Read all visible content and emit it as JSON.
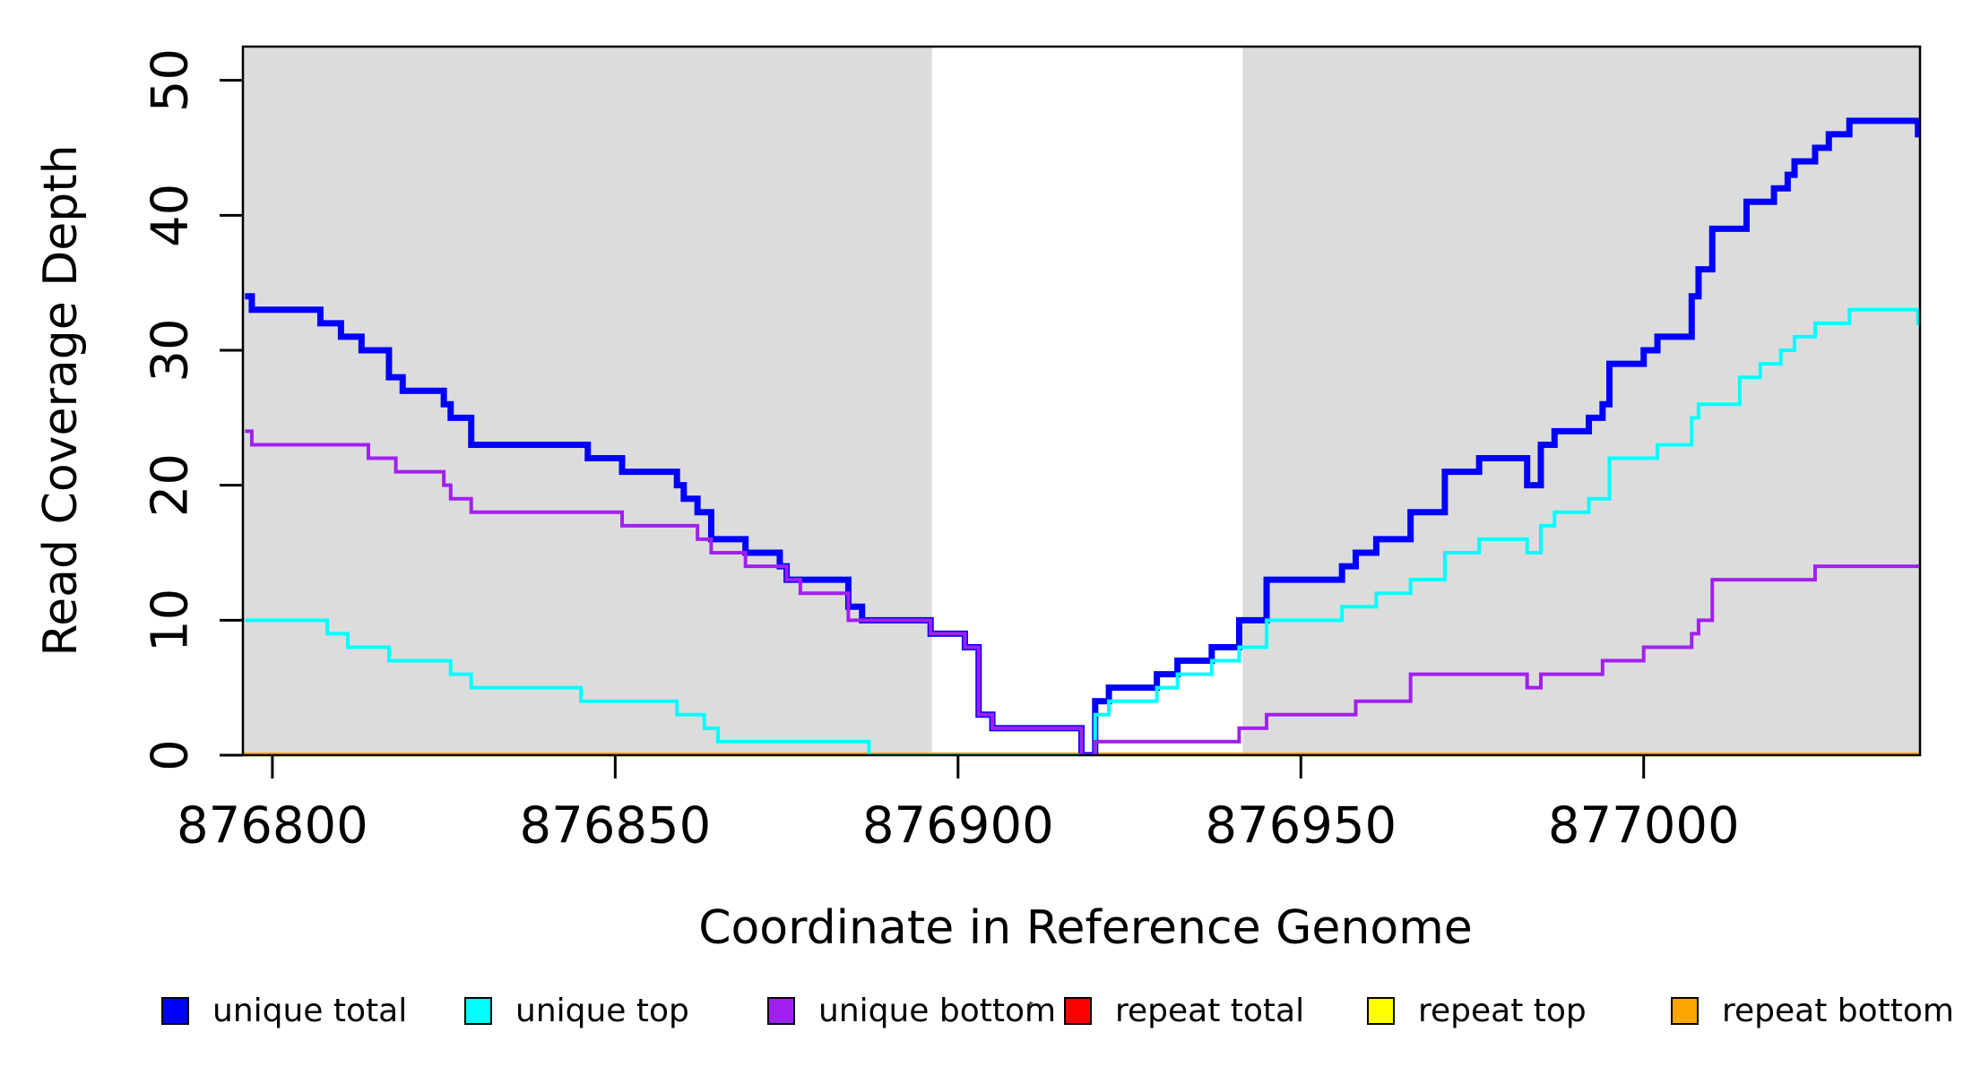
{
  "figure": {
    "y_title": "Read Coverage Depth",
    "x_title": "Coordinate in Reference Genome",
    "legend": {
      "items": [
        {
          "label": "unique total",
          "color": "#0000FF"
        },
        {
          "label": "unique top",
          "color": "#00FFFF"
        },
        {
          "label": "unique bottom",
          "color": "#A020F0"
        },
        {
          "label": "repeat total",
          "color": "#FF0000"
        },
        {
          "label": "repeat top",
          "color": "#FFFF00"
        },
        {
          "label": "repeat bottom",
          "color": "#FFA500"
        }
      ]
    }
  },
  "chart_data": {
    "type": "line",
    "subtype": "step",
    "title": "",
    "xlabel": "Coordinate in Reference Genome",
    "ylabel": "Read Coverage Depth",
    "xlim": [
      876795.7,
      877040.3
    ],
    "ylim": [
      0,
      52.5
    ],
    "x_ticks": [
      876800,
      876850,
      876900,
      876950,
      877000
    ],
    "y_ticks": [
      0,
      10,
      20,
      30,
      40,
      50
    ],
    "grid": false,
    "legend_position": "bottom",
    "background_bands": {
      "color": "#DCDCDC",
      "comment": "shaded unique-mappability regions; white gap is the repeat region",
      "ranges": [
        [
          876795.7,
          876896.2
        ],
        [
          876941.5,
          877040.3
        ]
      ]
    },
    "axis_color": "#000000",
    "draw_order": [
      "repeat total",
      "repeat top",
      "repeat bottom",
      "unique total",
      "unique top",
      "unique bottom"
    ],
    "series": [
      {
        "name": "unique total",
        "color": "#0000FF",
        "width": 7,
        "steps": [
          [
            876796,
            34
          ],
          [
            876797,
            33
          ],
          [
            876807,
            32
          ],
          [
            876810,
            31
          ],
          [
            876813,
            30
          ],
          [
            876817,
            28
          ],
          [
            876819,
            27
          ],
          [
            876825,
            26
          ],
          [
            876826,
            25
          ],
          [
            876829,
            23
          ],
          [
            876846,
            22
          ],
          [
            876851,
            21
          ],
          [
            876859,
            20
          ],
          [
            876860,
            19
          ],
          [
            876862,
            18
          ],
          [
            876864,
            16
          ],
          [
            876869,
            15
          ],
          [
            876874,
            14
          ],
          [
            876875,
            13
          ],
          [
            876884,
            11
          ],
          [
            876886,
            10
          ],
          [
            876896,
            9
          ],
          [
            876901,
            8
          ],
          [
            876903,
            3
          ],
          [
            876905,
            2
          ],
          [
            876918,
            0
          ],
          [
            876920,
            4
          ],
          [
            876922,
            5
          ],
          [
            876929,
            6
          ],
          [
            876932,
            7
          ],
          [
            876937,
            8
          ],
          [
            876941,
            10
          ],
          [
            876945,
            13
          ],
          [
            876956,
            14
          ],
          [
            876958,
            15
          ],
          [
            876961,
            16
          ],
          [
            876966,
            18
          ],
          [
            876971,
            21
          ],
          [
            876976,
            22
          ],
          [
            876983,
            20
          ],
          [
            876985,
            23
          ],
          [
            876987,
            24
          ],
          [
            876992,
            25
          ],
          [
            876994,
            26
          ],
          [
            876995,
            29
          ],
          [
            877000,
            30
          ],
          [
            877002,
            31
          ],
          [
            877007,
            34
          ],
          [
            877008,
            36
          ],
          [
            877010,
            39
          ],
          [
            877015,
            41
          ],
          [
            877019,
            42
          ],
          [
            877021,
            43
          ],
          [
            877022,
            44
          ],
          [
            877025,
            45
          ],
          [
            877027,
            46
          ],
          [
            877030,
            47
          ],
          [
            877040,
            46
          ]
        ]
      },
      {
        "name": "unique top",
        "color": "#00FFFF",
        "width": 4,
        "steps": [
          [
            876796,
            10
          ],
          [
            876808,
            9
          ],
          [
            876811,
            8
          ],
          [
            876817,
            7
          ],
          [
            876826,
            6
          ],
          [
            876829,
            5
          ],
          [
            876845,
            4
          ],
          [
            876859,
            3
          ],
          [
            876863,
            2
          ],
          [
            876865,
            1
          ],
          [
            876887,
            0
          ],
          [
            876920,
            3
          ],
          [
            876922,
            4
          ],
          [
            876929,
            5
          ],
          [
            876932,
            6
          ],
          [
            876937,
            7
          ],
          [
            876941,
            8
          ],
          [
            876945,
            10
          ],
          [
            876956,
            11
          ],
          [
            876961,
            12
          ],
          [
            876966,
            13
          ],
          [
            876971,
            15
          ],
          [
            876976,
            16
          ],
          [
            876983,
            15
          ],
          [
            876985,
            17
          ],
          [
            876987,
            18
          ],
          [
            876992,
            19
          ],
          [
            876995,
            22
          ],
          [
            877002,
            23
          ],
          [
            877007,
            25
          ],
          [
            877008,
            26
          ],
          [
            877014,
            28
          ],
          [
            877017,
            29
          ],
          [
            877020,
            30
          ],
          [
            877022,
            31
          ],
          [
            877025,
            32
          ],
          [
            877030,
            33
          ],
          [
            877040,
            32
          ]
        ]
      },
      {
        "name": "unique bottom",
        "color": "#A020F0",
        "width": 4,
        "steps": [
          [
            876796,
            24
          ],
          [
            876797,
            23
          ],
          [
            876814,
            22
          ],
          [
            876818,
            21
          ],
          [
            876825,
            20
          ],
          [
            876826,
            19
          ],
          [
            876829,
            18
          ],
          [
            876851,
            17
          ],
          [
            876862,
            16
          ],
          [
            876864,
            15
          ],
          [
            876869,
            14
          ],
          [
            876875,
            13
          ],
          [
            876877,
            12
          ],
          [
            876884,
            10
          ],
          [
            876896,
            9
          ],
          [
            876901,
            8
          ],
          [
            876903,
            3
          ],
          [
            876905,
            2
          ],
          [
            876918,
            0
          ],
          [
            876920,
            1
          ],
          [
            876941,
            2
          ],
          [
            876945,
            3
          ],
          [
            876958,
            4
          ],
          [
            876966,
            6
          ],
          [
            876983,
            5
          ],
          [
            876985,
            6
          ],
          [
            876994,
            7
          ],
          [
            877000,
            8
          ],
          [
            877007,
            9
          ],
          [
            877008,
            10
          ],
          [
            877010,
            13
          ],
          [
            877025,
            14
          ]
        ]
      },
      {
        "name": "repeat total",
        "color": "#FF0000",
        "width": 5,
        "steps": [
          [
            876795.7,
            0
          ]
        ]
      },
      {
        "name": "repeat top",
        "color": "#FFFF00",
        "width": 5,
        "steps": [
          [
            876795.7,
            0
          ]
        ]
      },
      {
        "name": "repeat bottom",
        "color": "#FFA500",
        "width": 6,
        "steps": [
          [
            876795.7,
            0
          ]
        ]
      }
    ]
  }
}
